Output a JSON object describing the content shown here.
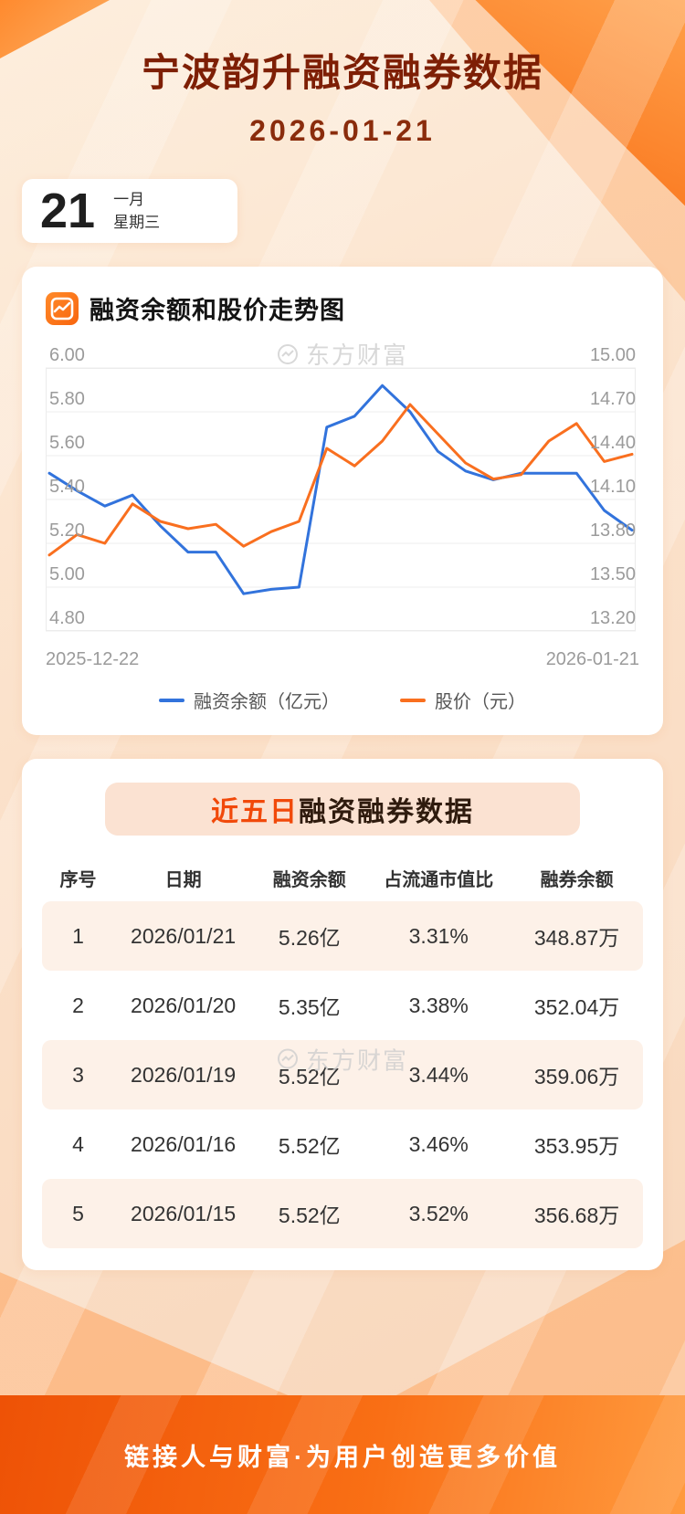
{
  "header": {
    "title": "宁波韵升融资融券数据",
    "date": "2026-01-21"
  },
  "date_card": {
    "day": "21",
    "month": "一月",
    "weekday": "星期三"
  },
  "chart_section": {
    "heading": "融资余额和股价走势图",
    "watermark": "东方财富"
  },
  "chart_data": {
    "type": "line",
    "x_tick_labels": [
      "2025-12-22",
      "2026-01-21"
    ],
    "left_axis": {
      "min": 4.8,
      "max": 6.0,
      "ticks": [
        "6.00",
        "5.80",
        "5.60",
        "5.40",
        "5.20",
        "5.00",
        "4.80"
      ]
    },
    "right_axis": {
      "min": 13.2,
      "max": 15.0,
      "ticks": [
        "15.00",
        "14.70",
        "14.40",
        "14.10",
        "13.80",
        "13.50",
        "13.20"
      ]
    },
    "grid": true,
    "legend_position": "bottom",
    "series": [
      {
        "name": "融资余额（亿元）",
        "axis": "left",
        "color": "#3273dc",
        "values": [
          5.52,
          5.44,
          5.37,
          5.42,
          5.28,
          5.16,
          5.16,
          4.97,
          4.99,
          5.0,
          5.73,
          5.78,
          5.92,
          5.8,
          5.62,
          5.53,
          5.49,
          5.52,
          5.52,
          5.52,
          5.35,
          5.26
        ]
      },
      {
        "name": "股价（元）",
        "axis": "right",
        "color": "#f96f1f",
        "values": [
          13.72,
          13.86,
          13.8,
          14.07,
          13.95,
          13.9,
          13.93,
          13.78,
          13.88,
          13.95,
          14.45,
          14.33,
          14.5,
          14.75,
          14.55,
          14.35,
          14.24,
          14.27,
          14.5,
          14.62,
          14.36,
          14.41
        ]
      }
    ]
  },
  "table_section": {
    "title_highlight": "近五日",
    "title_rest": "融资融券数据",
    "watermark": "东方财富",
    "columns": [
      "序号",
      "日期",
      "融资余额",
      "占流通市值比",
      "融券余额"
    ],
    "rows": [
      [
        "1",
        "2026/01/21",
        "5.26亿",
        "3.31%",
        "348.87万"
      ],
      [
        "2",
        "2026/01/20",
        "5.35亿",
        "3.38%",
        "352.04万"
      ],
      [
        "3",
        "2026/01/19",
        "5.52亿",
        "3.44%",
        "359.06万"
      ],
      [
        "4",
        "2026/01/16",
        "5.52亿",
        "3.46%",
        "353.95万"
      ],
      [
        "5",
        "2026/01/15",
        "5.52亿",
        "3.52%",
        "356.68万"
      ]
    ]
  },
  "footer": {
    "slogan": "链接人与财富·为用户创造更多价值"
  },
  "colors": {
    "title": "#7e1f05",
    "line_blue": "#3273dc",
    "line_orange": "#f96f1f",
    "highlight_red": "#f1490a",
    "row_alt_bg": "#fdf1e8",
    "footer_gradient_start": "#ee5206",
    "footer_gradient_end": "#ff9a3e"
  }
}
